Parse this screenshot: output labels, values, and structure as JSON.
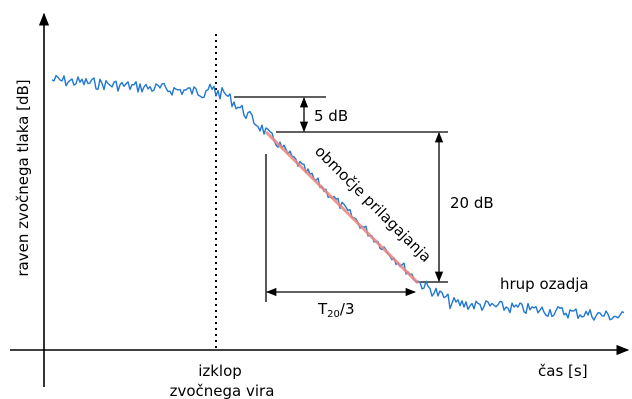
{
  "labels": {
    "y_axis": "raven zvočnega tlaka [dB]",
    "x_axis": "čas [s]",
    "source_off_line1": "izklop",
    "source_off_line2": "zvočnega vira",
    "db5": "5 dB",
    "db20": "20 dB",
    "fit_region": "območje prilagajanja",
    "t20_main": "T",
    "t20_sub": "20",
    "t20_tail": "/3",
    "background_noise": "hrup ozadja"
  },
  "colors": {
    "signal": "#1f77d4",
    "fit_line": "#e8877f",
    "axes": "#000000"
  }
}
